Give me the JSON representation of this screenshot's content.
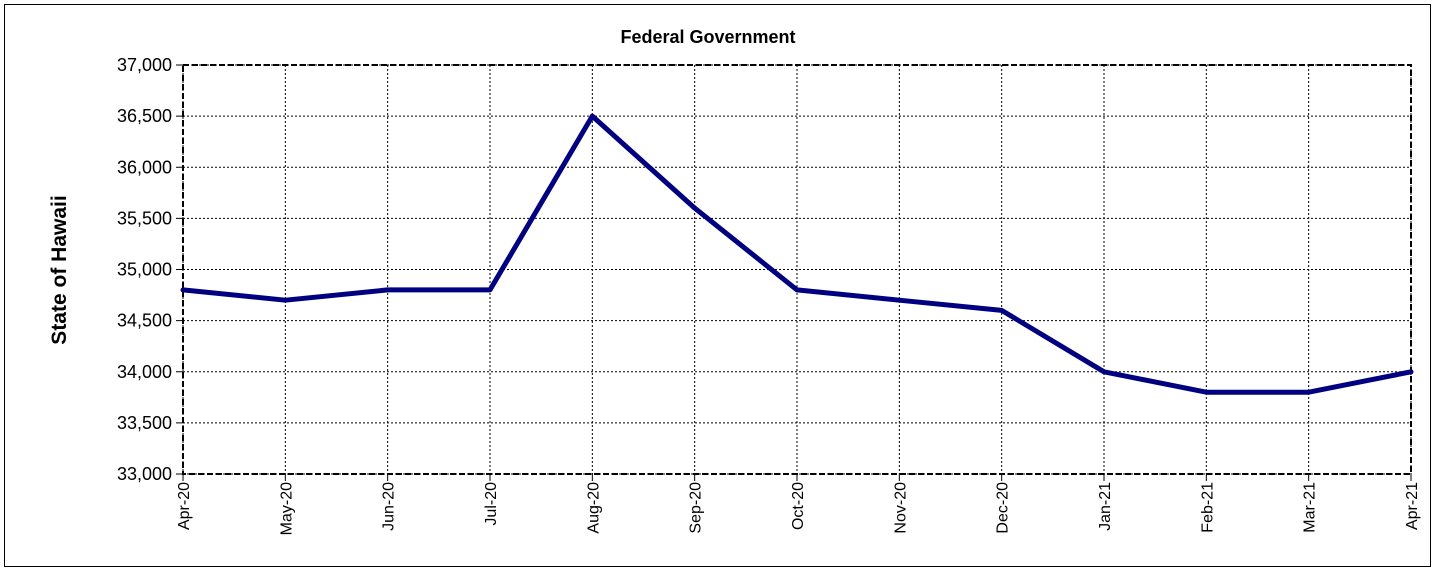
{
  "chart_data": {
    "type": "line",
    "title": "Federal Government",
    "xlabel": "",
    "ylabel": "State of Hawaii",
    "categories": [
      "Apr-20",
      "May-20",
      "Jun-20",
      "Jul-20",
      "Aug-20",
      "Sep-20",
      "Oct-20",
      "Nov-20",
      "Dec-20",
      "Jan-21",
      "Feb-21",
      "Mar-21",
      "Apr-21"
    ],
    "series": [
      {
        "values": [
          34800,
          34700,
          34800,
          34800,
          36500,
          35600,
          34800,
          34700,
          34600,
          34000,
          33800,
          33800,
          34000
        ]
      }
    ],
    "ylim": [
      33000,
      37000
    ],
    "yticks": [
      33000,
      33500,
      34000,
      34500,
      35000,
      35500,
      36000,
      36500,
      37000
    ],
    "ytick_labels": [
      "33,000",
      "33,500",
      "34,000",
      "34,500",
      "35,000",
      "35,500",
      "36,000",
      "36,500",
      "37,000"
    ],
    "grid": true,
    "legend": "none",
    "colors": {
      "line": "#000080",
      "grid": "#000000",
      "background": "#ffffff"
    }
  }
}
